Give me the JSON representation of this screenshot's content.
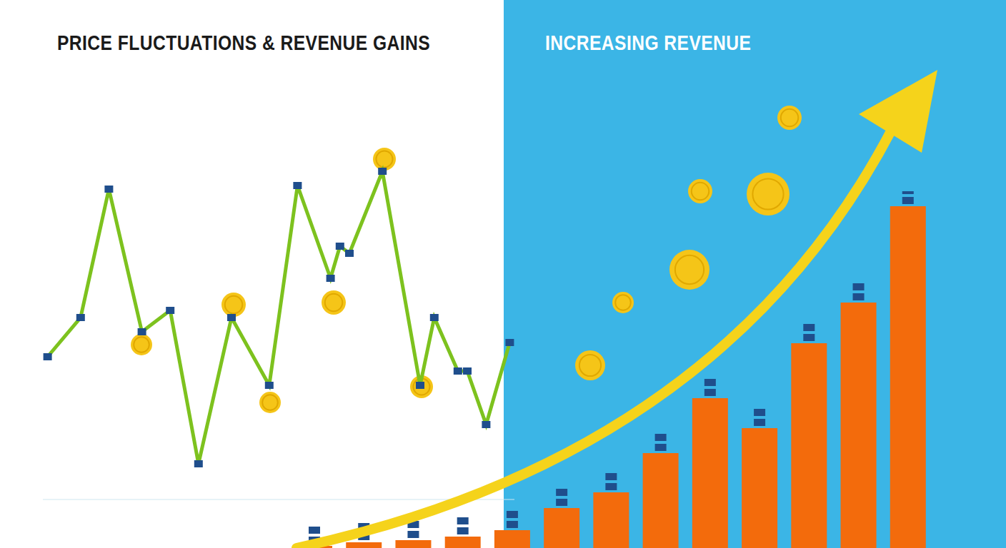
{
  "chart_data": [
    {
      "type": "line",
      "title": "PRICE FLUCTUATIONS & REVENUE GAINS",
      "x": [
        1,
        8,
        14,
        21,
        27,
        33,
        40,
        48,
        54,
        61,
        63,
        65,
        72,
        80,
        83,
        88,
        90,
        94,
        99
      ],
      "values": [
        40,
        51,
        87,
        47,
        53,
        10,
        51,
        32,
        88,
        62,
        71,
        69,
        92,
        32,
        51,
        36,
        36,
        21,
        44
      ],
      "xlim": [
        0,
        100
      ],
      "ylim": [
        0,
        100
      ],
      "color": "#7dc21e",
      "marker": "square",
      "grid": false,
      "tick_labels": false
    },
    {
      "type": "bar",
      "title": "INCREASING REVENUE",
      "categories": [
        null,
        null,
        null,
        null,
        null,
        null,
        null,
        null,
        null,
        null,
        null,
        null,
        null
      ],
      "values": [
        3,
        8,
        11,
        16,
        25,
        56,
        78,
        133,
        210,
        168,
        287,
        344,
        479
      ],
      "ylim": [
        0,
        500
      ],
      "color": "#f36b0c",
      "grid": false,
      "tick_labels": false
    }
  ]
}
